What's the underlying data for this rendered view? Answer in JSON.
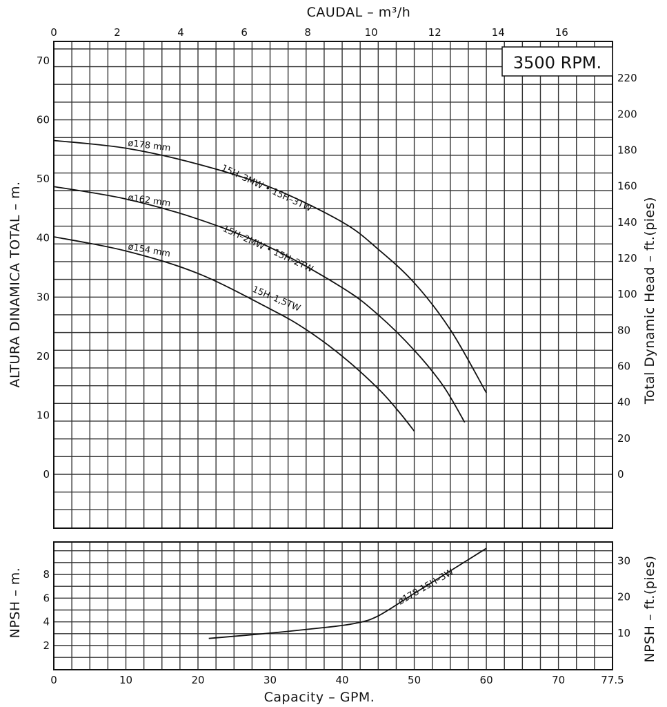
{
  "chart_data": [
    {
      "type": "line",
      "panel": "head",
      "top_axis_title": "CAUDAL  –  m³/h",
      "ylabel": "ALTURA DINAMICA TOTAL  –  m.",
      "ylabel_right": "Total Dynamic Head  –  ft.(pies)",
      "speed_label": "3500 RPM.",
      "xlim_gpm": [
        0,
        77.5
      ],
      "ylim_m": [
        -9,
        73
      ],
      "x_top_ticks": [
        "0",
        "2",
        "4",
        "6",
        "8",
        "10",
        "12",
        "14",
        "16"
      ],
      "y_left_ticks": [
        "0",
        "10",
        "20",
        "30",
        "40",
        "50",
        "60",
        "70"
      ],
      "y_right_ticks": [
        "0",
        "20",
        "40",
        "60",
        "80",
        "100",
        "120",
        "140",
        "160",
        "180",
        "200",
        "220"
      ],
      "grid": true,
      "series": [
        {
          "diameter_label": "ø178 mm",
          "model_label": "15H–3MW • 15H–3TW",
          "x": [
            0,
            10,
            20,
            30,
            40,
            45,
            50,
            55,
            60
          ],
          "y": [
            56.5,
            55.2,
            52.5,
            48.6,
            42.7,
            38.1,
            32.4,
            24.5,
            13.8
          ]
        },
        {
          "diameter_label": "ø162 mm",
          "model_label": "15H–2MW • 15H–2TW",
          "x": [
            0,
            10,
            20,
            30,
            40,
            45,
            50,
            54,
            57
          ],
          "y": [
            48.7,
            46.6,
            43.2,
            38.4,
            31.6,
            27.0,
            21.0,
            15.0,
            8.8
          ]
        },
        {
          "diameter_label": "ø154 mm",
          "model_label": "15H–1,5TW",
          "x": [
            0,
            10,
            20,
            30,
            35,
            40,
            45,
            48,
            50
          ],
          "y": [
            40.2,
            37.8,
            34.0,
            28.0,
            24.5,
            20.0,
            14.5,
            10.4,
            7.3
          ]
        }
      ]
    },
    {
      "type": "line",
      "panel": "npsh",
      "xlabel": "Capacity  –  GPM.",
      "ylabel": "NPSH  –  m.",
      "ylabel_right": "NPSH  –  ft.(pies)",
      "xlim_gpm": [
        0,
        77.5
      ],
      "ylim_m": [
        0,
        10.4
      ],
      "x_bottom_ticks": [
        "0",
        "10",
        "20",
        "30",
        "40",
        "50",
        "60",
        "70",
        "77.5"
      ],
      "y_left_ticks": [
        "2",
        "4",
        "6",
        "8"
      ],
      "y_right_ticks": [
        "10",
        "20",
        "30"
      ],
      "grid": true,
      "series": [
        {
          "model_label": "ø178 15H–3W",
          "x": [
            21.5,
            30,
            38,
            42,
            45,
            50,
            55,
            60
          ],
          "y": [
            2.6,
            3.05,
            3.55,
            3.9,
            4.5,
            6.4,
            8.3,
            10.2
          ]
        }
      ]
    }
  ]
}
